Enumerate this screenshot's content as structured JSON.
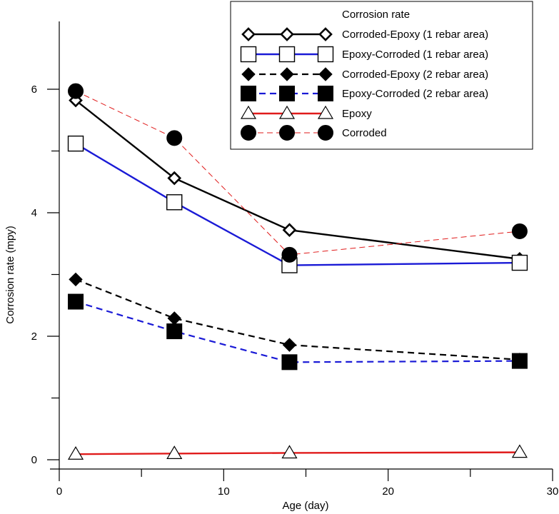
{
  "chart_data": {
    "type": "line",
    "xlabel": "Age (day)",
    "ylabel": "Corrosion rate (mpy)",
    "xlim": [
      0,
      30
    ],
    "ylim": [
      0,
      6.3
    ],
    "xticks": [
      0,
      10,
      20,
      30
    ],
    "yticks": [
      0,
      2,
      4,
      6
    ],
    "grid": false,
    "legend": {
      "title": "Corrosion rate",
      "placement": "top-right"
    },
    "series": [
      {
        "name": "Corroded-Epoxy (1 rebar area)",
        "x": [
          1,
          7,
          14,
          28
        ],
        "y": [
          5.82,
          4.56,
          3.72,
          3.25
        ],
        "color": "#000000",
        "line_style": "solid",
        "marker": "diamond-open"
      },
      {
        "name": "Epoxy-Corroded (1 rebar area)",
        "x": [
          1,
          7,
          14,
          28
        ],
        "y": [
          5.12,
          4.17,
          3.15,
          3.19
        ],
        "color": "#1a1ad6",
        "line_style": "solid",
        "marker": "square-open"
      },
      {
        "name": "Corroded-Epoxy (2 rebar area)",
        "x": [
          1,
          7,
          14,
          28
        ],
        "y": [
          2.92,
          2.29,
          1.86,
          1.62
        ],
        "color": "#000000",
        "line_style": "dashed",
        "marker": "diamond-filled"
      },
      {
        "name": "Epoxy-Corroded (2 rebar area)",
        "x": [
          1,
          7,
          14,
          28
        ],
        "y": [
          2.56,
          2.08,
          1.58,
          1.6
        ],
        "color": "#1a1ad6",
        "line_style": "dashed",
        "marker": "square-filled"
      },
      {
        "name": "Epoxy",
        "x": [
          1,
          7,
          14,
          28
        ],
        "y": [
          0.09,
          0.1,
          0.11,
          0.12
        ],
        "color": "#e01b1b",
        "line_style": "solid",
        "marker": "triangle-open"
      },
      {
        "name": "Corroded",
        "x": [
          1,
          7,
          14,
          28
        ],
        "y": [
          5.97,
          5.21,
          3.32,
          3.7
        ],
        "color": "#e01b1b",
        "line_style": "thin-dashed",
        "marker": "circle-filled"
      }
    ]
  }
}
